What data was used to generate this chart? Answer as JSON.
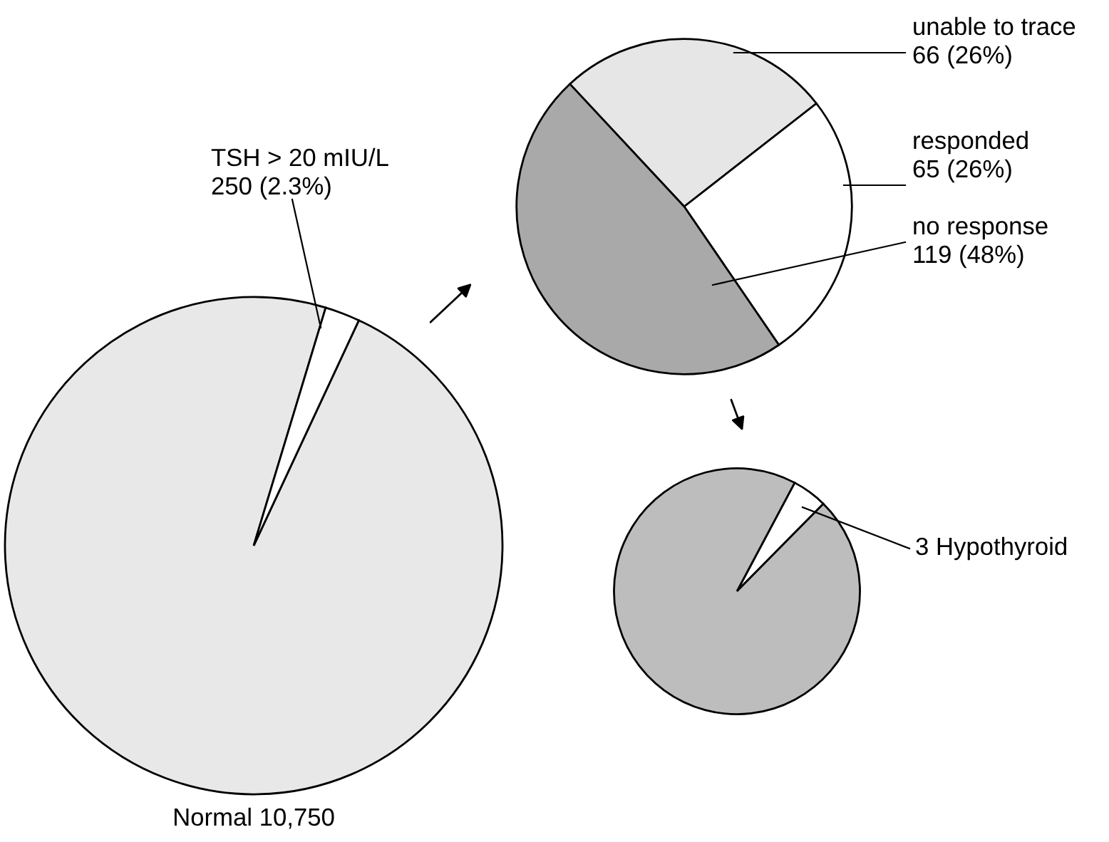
{
  "chart_data": [
    {
      "type": "pie",
      "categories": [
        "Normal 10,750",
        "TSH > 20 mIU/L\n250 (2.3%)"
      ],
      "values": [
        10750,
        250
      ],
      "colors": [
        "#e8e8e8",
        "#ffffff"
      ]
    },
    {
      "type": "pie",
      "categories": [
        "unable to trace\n66 (26%)",
        "responded\n65 (26%)",
        "no response\n119 (48%)"
      ],
      "values": [
        66,
        65,
        119
      ],
      "colors": [
        "#e6e6e6",
        "#ffffff",
        "#a9a9a9"
      ]
    },
    {
      "type": "pie",
      "categories": [
        "3 Hypothyroid",
        null
      ],
      "values": [
        3,
        62
      ],
      "colors": [
        "#ffffff",
        "#bdbdbd"
      ]
    }
  ]
}
